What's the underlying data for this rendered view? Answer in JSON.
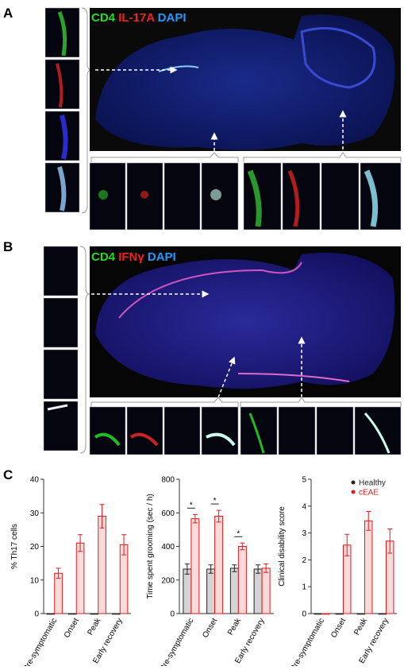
{
  "panels": [
    {
      "label": "A",
      "stains": [
        "CD4",
        "IL-17A",
        "DAPI"
      ]
    },
    {
      "label": "B",
      "stains": [
        "CD4",
        "IFNγ",
        "DAPI"
      ]
    },
    {
      "label": "C"
    }
  ],
  "chart_data": [
    {
      "type": "bar",
      "ylabel": "% Th17 cells",
      "categories": [
        "Pre-symptomatic",
        "Onset",
        "Peak",
        "Early recovery"
      ],
      "series": [
        {
          "color": "#222222",
          "fill": "#dddddd",
          "values": [
            0,
            0,
            0,
            0
          ],
          "errors": [
            0,
            0,
            0,
            0
          ]
        },
        {
          "color": "#e31a1c",
          "fill": "#fbdada",
          "values": [
            12,
            21,
            29,
            20.5
          ],
          "errors": [
            1.5,
            2.5,
            3.5,
            3
          ]
        }
      ],
      "ylim": [
        0,
        40
      ],
      "yticks": [
        0,
        10,
        20,
        30,
        40
      ]
    },
    {
      "type": "bar",
      "ylabel": "Time spent grooming (sec / h)",
      "categories": [
        "Pre-symptomatic",
        "Onset",
        "Peak",
        "Early recovery"
      ],
      "series": [
        {
          "color": "#222222",
          "fill": "#d4d4d4",
          "values": [
            265,
            265,
            270,
            265
          ],
          "errors": [
            30,
            25,
            20,
            25
          ]
        },
        {
          "color": "#e31a1c",
          "fill": "#fbdada",
          "values": [
            565,
            580,
            400,
            270
          ],
          "errors": [
            25,
            35,
            20,
            25
          ]
        }
      ],
      "annotations": [
        "*",
        "*",
        "*",
        null
      ],
      "ylim": [
        0,
        800
      ],
      "yticks": [
        0,
        200,
        400,
        600,
        800
      ]
    },
    {
      "type": "bar",
      "ylabel": "Clinical disability score",
      "categories": [
        "Pre-symptomatic",
        "Onset",
        "Peak",
        "Early recovery"
      ],
      "series": [
        {
          "name": "Healthy",
          "color": "#222222",
          "fill": "#dddddd",
          "values": [
            0,
            0,
            0,
            0
          ],
          "errors": [
            0,
            0,
            0,
            0
          ]
        },
        {
          "name": "cEAE",
          "color": "#e31a1c",
          "fill": "#fbdada",
          "values": [
            0,
            2.55,
            3.45,
            2.7
          ],
          "errors": [
            0,
            0.4,
            0.35,
            0.45
          ]
        }
      ],
      "legend": "upper right",
      "ylim": [
        0,
        5
      ],
      "yticks": [
        0,
        1,
        2,
        3,
        4,
        5
      ]
    }
  ]
}
